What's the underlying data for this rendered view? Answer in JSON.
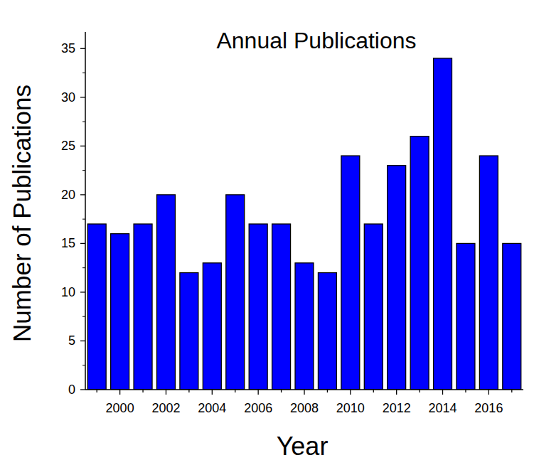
{
  "chart_data": {
    "type": "bar",
    "title": "Annual Publications",
    "x_label": "Year",
    "y_label": "Number of Publications",
    "categories": [
      null,
      "2000",
      null,
      "2002",
      null,
      "2004",
      null,
      "2006",
      null,
      "2008",
      null,
      "2010",
      null,
      "2012",
      null,
      "2014",
      null,
      "2016",
      null
    ],
    "values": [
      17,
      16,
      17,
      20,
      12,
      13,
      20,
      17,
      17,
      13,
      12,
      24,
      17,
      23,
      26,
      34,
      15,
      24,
      15
    ],
    "color": "#0000ff",
    "ylim": [
      0,
      36.7
    ],
    "yticks": [
      0,
      5,
      10,
      15,
      20,
      25,
      30,
      35
    ],
    "grid": false
  }
}
